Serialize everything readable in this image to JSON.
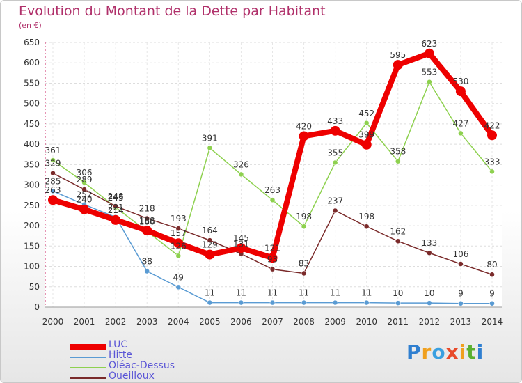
{
  "title": "Evolution du Montant de la Dette par Habitant",
  "subtitle": "(en €)",
  "brand": "Proxiti",
  "chart_data": {
    "type": "line",
    "title": "Evolution du Montant de la Dette par Habitant",
    "subtitle": "(en €)",
    "x": [
      "2000",
      "2001",
      "2002",
      "2003",
      "2004",
      "2005",
      "2006",
      "2007",
      "2008",
      "2009",
      "2010",
      "2011",
      "2012",
      "2013",
      "2014"
    ],
    "ylim": [
      0,
      650
    ],
    "yticks": [
      0,
      50,
      100,
      150,
      200,
      250,
      300,
      350,
      400,
      450,
      500,
      550,
      600,
      650
    ],
    "grid": true,
    "legend_position": "bottom-left",
    "series": [
      {
        "name": "LUC",
        "color": "#ee0000",
        "values": [
          263,
          240,
          214,
          188,
          157,
          129,
          145,
          121,
          420,
          433,
          399,
          595,
          623,
          530,
          422
        ],
        "labels": [
          "263",
          "240",
          "214",
          "188",
          "157",
          "129",
          "145",
          "121",
          "420",
          "433",
          "399",
          "595",
          "623",
          "530",
          "422"
        ]
      },
      {
        "name": "Hitte",
        "color": "#5a9bd3",
        "values": [
          285,
          252,
          221,
          88,
          49,
          11,
          11,
          11,
          11,
          11,
          11,
          10,
          10,
          9,
          9
        ],
        "labels": [
          "285",
          "252",
          "221",
          "88",
          "49",
          "11",
          "11",
          "11",
          "11",
          "11",
          "11",
          "10",
          "10",
          "9",
          "9"
        ]
      },
      {
        "name": "Oléac-Dessus",
        "color": "#8ed14f",
        "values": [
          361,
          306,
          245,
          186,
          126,
          391,
          326,
          263,
          198,
          355,
          452,
          358,
          553,
          427,
          333
        ],
        "labels": [
          "361",
          "306",
          "245",
          "186",
          "126",
          "391",
          "326",
          "263",
          "198",
          "355",
          "452",
          "358",
          "553",
          "427",
          "333"
        ]
      },
      {
        "name": "Oueilloux",
        "color": "#7a2a2a",
        "values": [
          329,
          289,
          248,
          218,
          193,
          164,
          131,
          93,
          83,
          237,
          198,
          162,
          133,
          106,
          80
        ],
        "labels": [
          "329",
          "289",
          "248",
          "218",
          "193",
          "164",
          "131",
          "93",
          "83",
          "237",
          "198",
          "162",
          "133",
          "106",
          "80"
        ]
      }
    ]
  }
}
